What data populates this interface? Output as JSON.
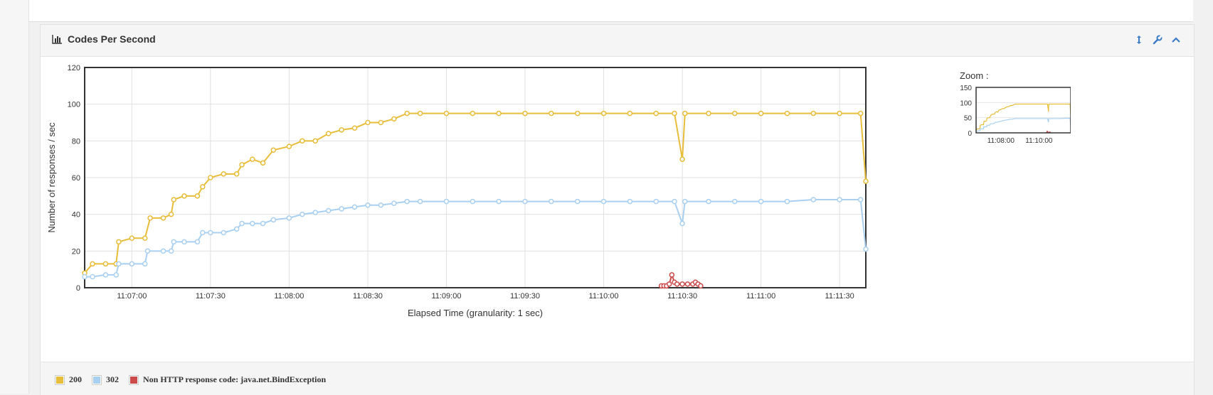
{
  "panel": {
    "title": "Codes Per Second"
  },
  "icons": {
    "title": "bar-chart-icon",
    "resize": "vertical-resize-icon",
    "settings": "wrench-icon",
    "collapse": "chevron-up-icon"
  },
  "zoom": {
    "label": "Zoom :",
    "yticks": [
      0,
      50,
      100,
      150
    ],
    "xticks": [
      "11:08:00",
      "11:10:00"
    ]
  },
  "chart_data": {
    "type": "line",
    "xlabel": "Elapsed Time (granularity: 1 sec)",
    "ylabel": "Number of responses / sec",
    "ylim": [
      0,
      120
    ],
    "yticks": [
      0,
      20,
      40,
      60,
      80,
      100,
      120
    ],
    "xticks": [
      "11:07:00",
      "11:07:30",
      "11:08:00",
      "11:08:30",
      "11:09:00",
      "11:09:30",
      "11:10:00",
      "11:10:30",
      "11:11:00",
      "11:11:30"
    ],
    "x_start": "11:06:42",
    "x_end": "11:11:40",
    "grid": true,
    "legend_position": "bottom",
    "series": [
      {
        "name": "200",
        "color": "#e8bd3a",
        "points": [
          [
            "11:06:42",
            8
          ],
          [
            "11:06:45",
            13
          ],
          [
            "11:06:50",
            13
          ],
          [
            "11:06:54",
            13
          ],
          [
            "11:06:55",
            25
          ],
          [
            "11:07:00",
            27
          ],
          [
            "11:07:05",
            27
          ],
          [
            "11:07:07",
            38
          ],
          [
            "11:07:12",
            38
          ],
          [
            "11:07:15",
            40
          ],
          [
            "11:07:16",
            48
          ],
          [
            "11:07:20",
            50
          ],
          [
            "11:07:25",
            50
          ],
          [
            "11:07:27",
            55
          ],
          [
            "11:07:30",
            60
          ],
          [
            "11:07:35",
            62
          ],
          [
            "11:07:40",
            62
          ],
          [
            "11:07:42",
            67
          ],
          [
            "11:07:46",
            70
          ],
          [
            "11:07:50",
            68
          ],
          [
            "11:07:54",
            75
          ],
          [
            "11:08:00",
            77
          ],
          [
            "11:08:05",
            80
          ],
          [
            "11:08:10",
            80
          ],
          [
            "11:08:15",
            84
          ],
          [
            "11:08:20",
            86
          ],
          [
            "11:08:25",
            87
          ],
          [
            "11:08:30",
            90
          ],
          [
            "11:08:35",
            90
          ],
          [
            "11:08:40",
            92
          ],
          [
            "11:08:45",
            95
          ],
          [
            "11:08:50",
            95
          ],
          [
            "11:09:00",
            95
          ],
          [
            "11:09:10",
            95
          ],
          [
            "11:09:20",
            95
          ],
          [
            "11:09:30",
            95
          ],
          [
            "11:09:40",
            95
          ],
          [
            "11:09:50",
            95
          ],
          [
            "11:10:00",
            95
          ],
          [
            "11:10:10",
            95
          ],
          [
            "11:10:20",
            95
          ],
          [
            "11:10:27",
            95
          ],
          [
            "11:10:30",
            70
          ],
          [
            "11:10:31",
            95
          ],
          [
            "11:10:40",
            95
          ],
          [
            "11:10:50",
            95
          ],
          [
            "11:11:00",
            95
          ],
          [
            "11:11:10",
            95
          ],
          [
            "11:11:20",
            95
          ],
          [
            "11:11:30",
            95
          ],
          [
            "11:11:38",
            95
          ],
          [
            "11:11:40",
            58
          ]
        ]
      },
      {
        "name": "302",
        "color": "#a9d0f0",
        "points": [
          [
            "11:06:42",
            6
          ],
          [
            "11:06:45",
            6
          ],
          [
            "11:06:50",
            7
          ],
          [
            "11:06:54",
            7
          ],
          [
            "11:06:55",
            13
          ],
          [
            "11:07:00",
            13
          ],
          [
            "11:07:05",
            13
          ],
          [
            "11:07:06",
            20
          ],
          [
            "11:07:12",
            20
          ],
          [
            "11:07:15",
            20
          ],
          [
            "11:07:16",
            25
          ],
          [
            "11:07:20",
            25
          ],
          [
            "11:07:25",
            25
          ],
          [
            "11:07:27",
            30
          ],
          [
            "11:07:30",
            30
          ],
          [
            "11:07:35",
            30
          ],
          [
            "11:07:40",
            32
          ],
          [
            "11:07:42",
            35
          ],
          [
            "11:07:46",
            35
          ],
          [
            "11:07:50",
            35
          ],
          [
            "11:07:54",
            37
          ],
          [
            "11:08:00",
            38
          ],
          [
            "11:08:05",
            40
          ],
          [
            "11:08:10",
            41
          ],
          [
            "11:08:15",
            42
          ],
          [
            "11:08:20",
            43
          ],
          [
            "11:08:25",
            44
          ],
          [
            "11:08:30",
            45
          ],
          [
            "11:08:35",
            45
          ],
          [
            "11:08:40",
            46
          ],
          [
            "11:08:45",
            47
          ],
          [
            "11:08:50",
            47
          ],
          [
            "11:09:00",
            47
          ],
          [
            "11:09:10",
            47
          ],
          [
            "11:09:20",
            47
          ],
          [
            "11:09:30",
            47
          ],
          [
            "11:09:40",
            47
          ],
          [
            "11:09:50",
            47
          ],
          [
            "11:10:00",
            47
          ],
          [
            "11:10:10",
            47
          ],
          [
            "11:10:20",
            47
          ],
          [
            "11:10:27",
            47
          ],
          [
            "11:10:30",
            35
          ],
          [
            "11:10:31",
            47
          ],
          [
            "11:10:40",
            47
          ],
          [
            "11:10:50",
            47
          ],
          [
            "11:11:00",
            47
          ],
          [
            "11:11:10",
            47
          ],
          [
            "11:11:20",
            48
          ],
          [
            "11:11:30",
            48
          ],
          [
            "11:11:38",
            48
          ],
          [
            "11:11:40",
            21
          ]
        ]
      },
      {
        "name": "Non HTTP response code: java.net.BindException",
        "color": "#cb4b4b",
        "points": [
          [
            "11:10:22",
            1
          ],
          [
            "11:10:23",
            1
          ],
          [
            "11:10:24",
            1
          ],
          [
            "11:10:25",
            2
          ],
          [
            "11:10:26",
            7
          ],
          [
            "11:10:27",
            3
          ],
          [
            "11:10:28",
            2
          ],
          [
            "11:10:30",
            2
          ],
          [
            "11:10:32",
            2
          ],
          [
            "11:10:34",
            2
          ],
          [
            "11:10:35",
            3
          ],
          [
            "11:10:36",
            2
          ],
          [
            "11:10:37",
            1
          ]
        ]
      }
    ]
  }
}
